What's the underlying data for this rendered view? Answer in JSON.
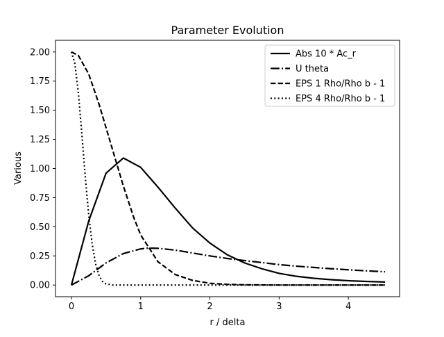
{
  "chart_data": {
    "type": "line",
    "title": "Parameter Evolution",
    "xlabel": "r / delta",
    "ylabel": "Various",
    "xlim": [
      -0.23,
      4.74
    ],
    "ylim": [
      -0.1,
      2.1
    ],
    "xticks": [
      0,
      1,
      2,
      3,
      4
    ],
    "yticks": [
      0.0,
      0.25,
      0.5,
      0.75,
      1.0,
      1.25,
      1.5,
      1.75,
      2.0
    ],
    "xtick_labels": [
      "0",
      "1",
      "2",
      "3",
      "4"
    ],
    "ytick_labels": [
      "0.00",
      "0.25",
      "0.50",
      "0.75",
      "1.00",
      "1.25",
      "1.50",
      "1.75",
      "2.00"
    ],
    "grid": false,
    "legend_position": "top-right",
    "series": [
      {
        "name": "Abs 10 * Ac_r",
        "style": "solid",
        "color": "#000000",
        "x": [
          0,
          0.25,
          0.5,
          0.75,
          1.0,
          1.25,
          1.5,
          1.75,
          2.0,
          2.25,
          2.5,
          2.75,
          3.0,
          3.25,
          3.5,
          3.75,
          4.0,
          4.25,
          4.53
        ],
        "y": [
          0,
          0.55,
          0.96,
          1.09,
          1.01,
          0.84,
          0.66,
          0.49,
          0.36,
          0.26,
          0.19,
          0.14,
          0.1,
          0.075,
          0.058,
          0.046,
          0.037,
          0.031,
          0.026
        ]
      },
      {
        "name": "U theta",
        "style": "dashdot",
        "color": "#000000",
        "x": [
          0,
          0.25,
          0.5,
          0.75,
          1.0,
          1.1,
          1.25,
          1.5,
          1.75,
          2.0,
          2.25,
          2.5,
          2.75,
          3.0,
          3.25,
          3.5,
          3.75,
          4.0,
          4.25,
          4.53
        ],
        "y": [
          0,
          0.08,
          0.19,
          0.27,
          0.31,
          0.317,
          0.315,
          0.3,
          0.275,
          0.25,
          0.228,
          0.21,
          0.193,
          0.175,
          0.162,
          0.151,
          0.14,
          0.131,
          0.122,
          0.114
        ]
      },
      {
        "name": "EPS 1 Rho/Rho b - 1",
        "style": "dashed",
        "color": "#000000",
        "x": [
          0,
          0.1,
          0.25,
          0.4,
          0.5,
          0.6,
          0.75,
          0.9,
          1.0,
          1.25,
          1.5,
          1.75,
          2.0,
          2.25,
          2.5,
          3.0,
          3.5,
          4.0,
          4.53
        ],
        "y": [
          2.0,
          1.97,
          1.81,
          1.55,
          1.35,
          1.15,
          0.85,
          0.58,
          0.43,
          0.2,
          0.09,
          0.04,
          0.015,
          0.006,
          0.002,
          0.0,
          0.0,
          0.0,
          0.0
        ]
      },
      {
        "name": "EPS 4 Rho/Rho b - 1",
        "style": "dotted",
        "color": "#000000",
        "x": [
          0,
          0.05,
          0.1,
          0.15,
          0.2,
          0.25,
          0.3,
          0.35,
          0.4,
          0.45,
          0.5,
          0.6,
          0.7,
          1.0,
          2.0,
          3.0,
          4.0,
          4.53
        ],
        "y": [
          2.0,
          1.9,
          1.65,
          1.3,
          0.93,
          0.6,
          0.35,
          0.18,
          0.08,
          0.03,
          0.01,
          0.0,
          0.0,
          0.0,
          0.0,
          0.0,
          0.0,
          0.0
        ]
      }
    ]
  }
}
